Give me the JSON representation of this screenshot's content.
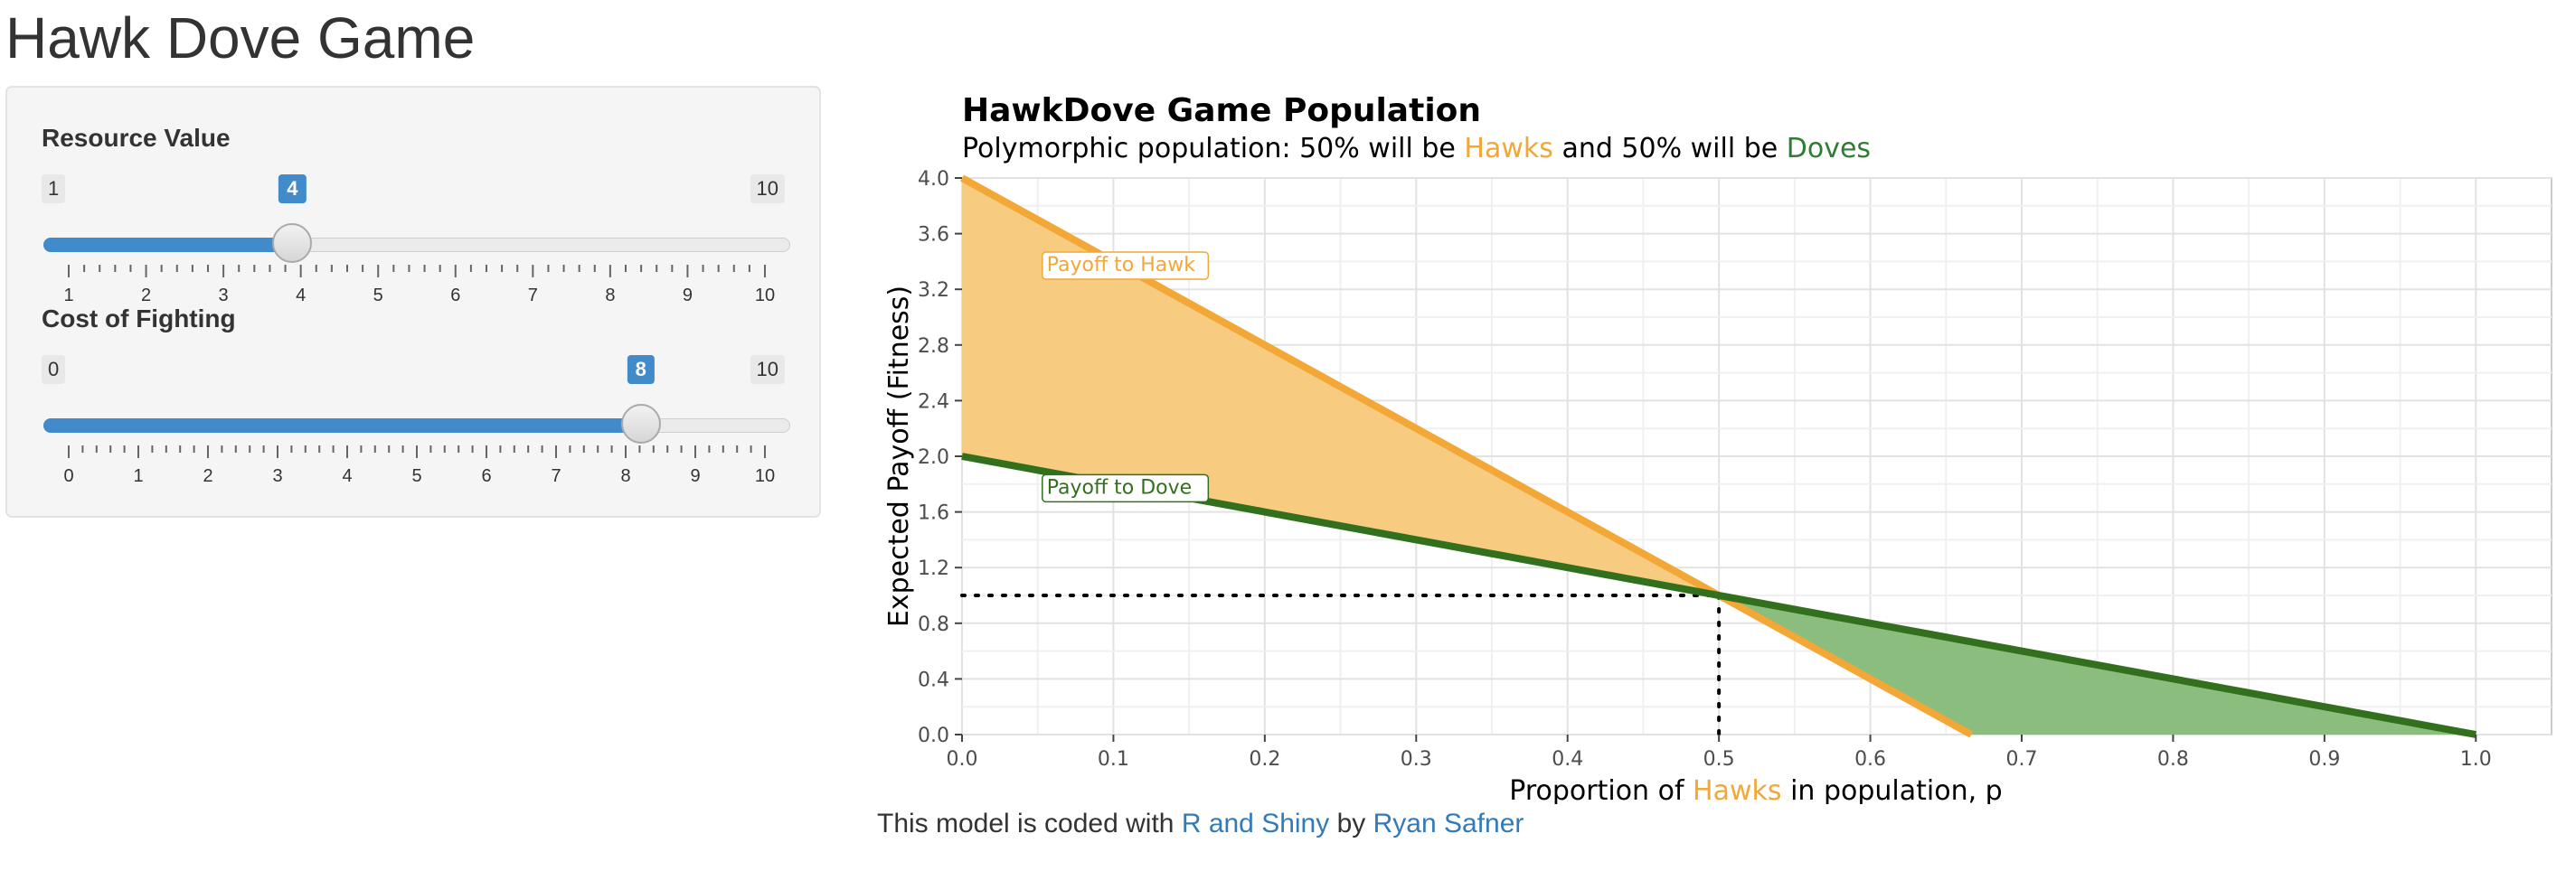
{
  "page": {
    "title": "Hawk Dove Game"
  },
  "sidebar": {
    "sliders": [
      {
        "label": "Resource Value",
        "min": 1,
        "max": 10,
        "value": 4,
        "ticks": [
          1,
          2,
          3,
          4,
          5,
          6,
          7,
          8,
          9,
          10
        ]
      },
      {
        "label": "Cost of Fighting",
        "min": 0,
        "max": 10,
        "value": 8,
        "ticks": [
          0,
          1,
          2,
          3,
          4,
          5,
          6,
          7,
          8,
          9,
          10
        ]
      }
    ]
  },
  "plot": {
    "title": "HawkDove Game Population",
    "subtitle_parts": [
      {
        "text": "Polymorphic population: 50% will be ",
        "color": "#000000"
      },
      {
        "text": "Hawks",
        "color": "#F2A737"
      },
      {
        "text": " and 50% will be ",
        "color": "#000000"
      },
      {
        "text": "Doves",
        "color": "#2E7D32"
      }
    ],
    "ylabel": "Expected Payoff (Fitness)",
    "xlabel_parts": [
      {
        "text": "Proportion of ",
        "color": "#000000"
      },
      {
        "text": "Hawks",
        "color": "#F2A737"
      },
      {
        "text": " in population, p",
        "color": "#000000"
      }
    ],
    "colors": {
      "hawk": "#F2A737",
      "hawk_fill": "#F7CC80",
      "dove": "#33701E",
      "dove_fill": "#8BBD7E"
    }
  },
  "chart_data": {
    "type": "line",
    "x": [
      0.0,
      0.5,
      0.6667,
      1.0
    ],
    "series": [
      {
        "name": "Payoff to Hawk",
        "x": [
          0.0,
          0.6667
        ],
        "y": [
          4.0,
          0.0
        ]
      },
      {
        "name": "Payoff to Dove",
        "x": [
          0.0,
          1.0
        ],
        "y": [
          2.0,
          0.0
        ]
      }
    ],
    "xlim": [
      0.0,
      1.05
    ],
    "ylim": [
      0.0,
      4.0
    ],
    "xticks": [
      "0.0",
      "0.1",
      "0.2",
      "0.3",
      "0.4",
      "0.5",
      "0.6",
      "0.7",
      "0.8",
      "0.9",
      "1.0"
    ],
    "yticks": [
      "0.0",
      "0.4",
      "0.8",
      "1.2",
      "1.6",
      "2.0",
      "2.4",
      "2.8",
      "3.2",
      "3.6",
      "4.0"
    ],
    "equilibrium": {
      "x": 0.5,
      "y": 1.0
    },
    "annotations": [
      "Payoff to Hawk",
      "Payoff to Dove"
    ],
    "grid": true
  },
  "footer": {
    "prefix": "This model is coded with ",
    "link1": "R and Shiny",
    "middle": " by ",
    "link2": "Ryan Safner"
  }
}
